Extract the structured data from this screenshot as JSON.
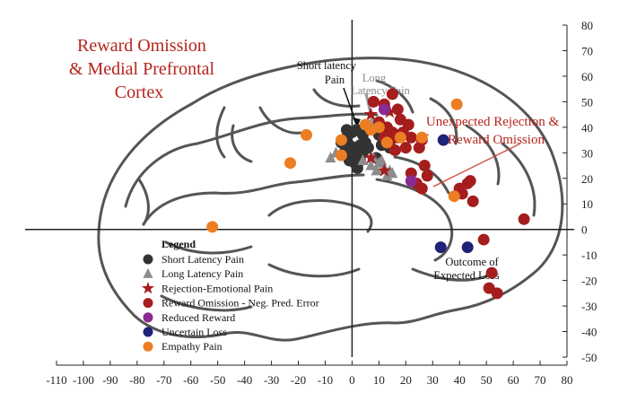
{
  "chart_data": {
    "type": "scatter",
    "title_lines": [
      "Reward Omission",
      "& Medial Prefrontal",
      "Cortex"
    ],
    "xlim": [
      -110,
      80
    ],
    "ylim": [
      -50,
      80
    ],
    "x_ticks": [
      -110,
      -100,
      -90,
      -80,
      -70,
      -60,
      -50,
      -40,
      -30,
      -20,
      -10,
      0,
      10,
      20,
      30,
      40,
      50,
      60,
      70,
      80
    ],
    "y_ticks": [
      80,
      70,
      60,
      50,
      40,
      30,
      20,
      10,
      0,
      -10,
      -20,
      -30,
      -40,
      -50
    ],
    "legend": {
      "title": "Legend",
      "placement": "bottom-left"
    },
    "annotations": {
      "short_latency": [
        "Short latency",
        "Pain"
      ],
      "long_latency": [
        "Long",
        "Latency Pain"
      ],
      "unexpected": [
        "Unexpected Rejection &",
        "Reward Omission"
      ],
      "outcome": [
        "Outcome of",
        "Expected Loss"
      ]
    },
    "series": [
      {
        "name": "Short Latency Pain",
        "marker": "circle",
        "color": "#333333",
        "points": [
          [
            -2,
            36
          ],
          [
            0,
            38
          ],
          [
            2,
            39
          ],
          [
            4,
            37
          ],
          [
            -1,
            33
          ],
          [
            1,
            32
          ],
          [
            3,
            33
          ],
          [
            5,
            34
          ],
          [
            -3,
            30
          ],
          [
            0,
            29
          ],
          [
            2,
            28
          ],
          [
            -1,
            27
          ],
          [
            1,
            26
          ],
          [
            3,
            27
          ],
          [
            4,
            30
          ],
          [
            6,
            32
          ],
          [
            -4,
            34
          ],
          [
            2,
            24
          ],
          [
            -2,
            39
          ],
          [
            10,
            37
          ],
          [
            11,
            33
          ],
          [
            9,
            28
          ],
          [
            14,
            32
          ],
          [
            16,
            31
          ]
        ]
      },
      {
        "name": "Long Latency Pain",
        "marker": "triangle",
        "color": "#8c8c8c",
        "points": [
          [
            -8,
            28
          ],
          [
            -6,
            30
          ],
          [
            4,
            27
          ],
          [
            7,
            25
          ],
          [
            10,
            26
          ],
          [
            12,
            24
          ],
          [
            14,
            23
          ],
          [
            11,
            27
          ],
          [
            9,
            23
          ],
          [
            13,
            21
          ],
          [
            15,
            22
          ],
          [
            8,
            28
          ]
        ]
      },
      {
        "name": "Rejection-Emotional Pain",
        "marker": "star",
        "color": "#a51d1d",
        "points": [
          [
            7,
            45
          ],
          [
            14,
            46
          ],
          [
            7,
            28
          ],
          [
            12,
            23
          ]
        ]
      },
      {
        "name": "Reward Omission - Neg. Pred. Error",
        "marker": "circle",
        "color": "#a51d1d",
        "points": [
          [
            8,
            50
          ],
          [
            12,
            49
          ],
          [
            15,
            53
          ],
          [
            17,
            47
          ],
          [
            18,
            43
          ],
          [
            13,
            40
          ],
          [
            15,
            38
          ],
          [
            17,
            36
          ],
          [
            19,
            38
          ],
          [
            21,
            41
          ],
          [
            22,
            36
          ],
          [
            10,
            42
          ],
          [
            12,
            36
          ],
          [
            14,
            34
          ],
          [
            16,
            31
          ],
          [
            20,
            32
          ],
          [
            25,
            32
          ],
          [
            26,
            35
          ],
          [
            27,
            25
          ],
          [
            24,
            18
          ],
          [
            26,
            16
          ],
          [
            28,
            21
          ],
          [
            40,
            16
          ],
          [
            41,
            14
          ],
          [
            43,
            18
          ],
          [
            45,
            11
          ],
          [
            44,
            19
          ],
          [
            49,
            -4
          ],
          [
            52,
            -17
          ],
          [
            51,
            -23
          ],
          [
            54,
            -25
          ],
          [
            64,
            4
          ],
          [
            22,
            22
          ]
        ]
      },
      {
        "name": "Reduced Reward",
        "marker": "circle",
        "color": "#8a2a92",
        "points": [
          [
            12,
            47
          ],
          [
            22,
            19
          ]
        ]
      },
      {
        "name": "Uncertain Loss",
        "marker": "circle",
        "color": "#1e2278",
        "points": [
          [
            34,
            35
          ],
          [
            33,
            -7
          ],
          [
            43,
            -7
          ]
        ]
      },
      {
        "name": "Empathy Pain",
        "marker": "circle",
        "color": "#ec7d23",
        "points": [
          [
            -17,
            37
          ],
          [
            -23,
            26
          ],
          [
            -4,
            35
          ],
          [
            -4,
            29
          ],
          [
            -52,
            1
          ],
          [
            5,
            41
          ],
          [
            7,
            39
          ],
          [
            10,
            40
          ],
          [
            13,
            34
          ],
          [
            18,
            36
          ],
          [
            26,
            36
          ],
          [
            39,
            49
          ],
          [
            38,
            13
          ]
        ]
      }
    ]
  }
}
